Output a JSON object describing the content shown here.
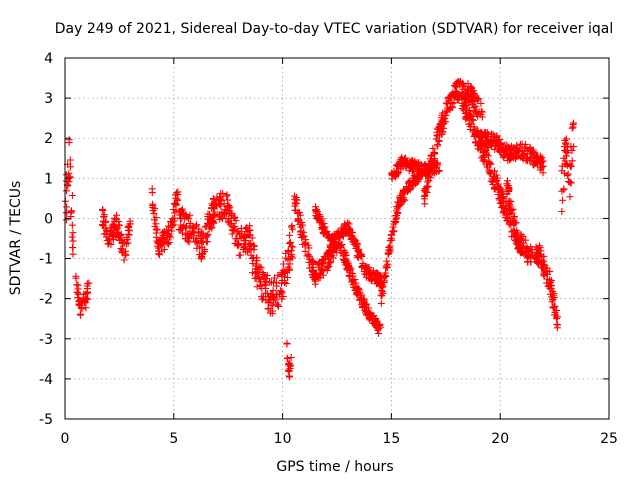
{
  "chart_data": {
    "type": "scatter",
    "title": "Day 249 of 2021, Sidereal Day-to-day VTEC variation (SDTVAR) for receiver iqal",
    "xlabel": "GPS time / hours",
    "ylabel": "SDTVAR / TECUs",
    "xlim": [
      0,
      25
    ],
    "ylim": [
      -5,
      4
    ],
    "xticks": [
      "0",
      "5",
      "10",
      "15",
      "20",
      "25"
    ],
    "yticks": [
      "-5",
      "-4",
      "-3",
      "-2",
      "-1",
      "0",
      "1",
      "2",
      "3",
      "4"
    ],
    "grid": true,
    "marker": "+",
    "color": "#ff0000",
    "series": [
      {
        "name": "SDTVAR",
        "segments": [
          {
            "x": [
              0.0,
              0.1,
              0.2,
              0.3,
              0.4
            ],
            "y": [
              -0.3,
              0.8,
              1.5,
              0.2,
              -0.4
            ],
            "spread": 1.4
          },
          {
            "x": [
              0.5,
              0.7,
              0.9,
              1.1
            ],
            "y": [
              -1.5,
              -2.3,
              -2.1,
              -1.7
            ],
            "spread": 0.5
          },
          {
            "x": [
              1.7,
              2.0,
              2.4,
              2.7,
              3.0
            ],
            "y": [
              0.1,
              -0.6,
              -0.1,
              -0.9,
              -0.2
            ],
            "spread": 0.5
          },
          {
            "x": [
              4.0,
              4.3,
              4.8,
              5.2
            ],
            "y": [
              0.6,
              -0.7,
              -0.4,
              0.7
            ],
            "spread": 0.5
          },
          {
            "x": [
              5.2,
              5.8,
              6.3,
              6.8,
              7.4,
              8.0,
              8.5
            ],
            "y": [
              0.0,
              -0.3,
              -0.7,
              0.2,
              0.4,
              -0.6,
              -0.5
            ],
            "spread": 0.7
          },
          {
            "x": [
              8.5,
              9.0,
              9.5,
              10.0,
              10.5
            ],
            "y": [
              -0.7,
              -1.6,
              -2.0,
              -1.6,
              -0.4
            ],
            "spread": 0.9
          },
          {
            "x": [
              10.2,
              10.3,
              10.4
            ],
            "y": [
              -3.2,
              -3.8,
              -3.6
            ],
            "spread": 0.4
          },
          {
            "x": [
              10.5,
              11.0,
              11.5,
              12.0,
              12.5
            ],
            "y": [
              0.6,
              -0.6,
              -1.4,
              -1.1,
              -0.6
            ],
            "spread": 0.5
          },
          {
            "x": [
              12.5,
              13.0,
              13.5,
              14.0,
              14.5
            ],
            "y": [
              -0.4,
              -1.2,
              -1.9,
              -2.4,
              -2.8
            ],
            "spread": 0.3
          },
          {
            "x": [
              11.5,
              12.2,
              13.0,
              13.8,
              14.6
            ],
            "y": [
              0.2,
              -0.6,
              -0.2,
              -1.3,
              -1.6
            ],
            "spread": 0.3
          },
          {
            "x": [
              14.5,
              14.9,
              15.3,
              15.8,
              16.3
            ],
            "y": [
              -2.1,
              -0.8,
              0.3,
              0.8,
              1.1
            ],
            "spread": 0.3
          },
          {
            "x": [
              15.0,
              15.5,
              16.0,
              16.6,
              17.2
            ],
            "y": [
              1.0,
              1.4,
              1.3,
              1.2,
              1.3
            ],
            "spread": 0.3
          },
          {
            "x": [
              16.5,
              17.0,
              17.6,
              18.0,
              18.6,
              19.2
            ],
            "y": [
              0.5,
              1.8,
              2.8,
              3.2,
              3.1,
              2.6
            ],
            "spread": 0.5
          },
          {
            "x": [
              18.2,
              18.8,
              19.4,
              20.0,
              20.5,
              21.0
            ],
            "y": [
              3.0,
              2.2,
              1.4,
              0.6,
              -0.2,
              -0.7
            ],
            "spread": 0.5
          },
          {
            "x": [
              19.0,
              19.8,
              20.4,
              21.0,
              21.6,
              22.0
            ],
            "y": [
              2.0,
              1.9,
              1.6,
              1.7,
              1.5,
              1.3
            ],
            "spread": 0.4
          },
          {
            "x": [
              20.3,
              20.8,
              21.3,
              21.8,
              22.3,
              22.7
            ],
            "y": [
              0.8,
              -0.5,
              -0.9,
              -0.9,
              -1.6,
              -2.8
            ],
            "spread": 0.5
          },
          {
            "x": [
              22.8,
              23.0,
              23.2,
              23.4
            ],
            "y": [
              0.5,
              1.8,
              0.8,
              2.5
            ],
            "spread": 1.2
          }
        ]
      }
    ]
  }
}
